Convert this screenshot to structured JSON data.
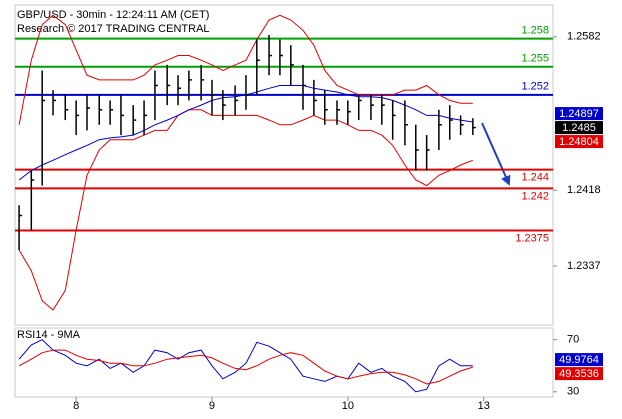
{
  "chart_data": [
    {
      "type": "hlc",
      "title": "GBP/USD - 30min - 12:24:11 AM (CET)",
      "subtitle": "Research © 2017 TRADING CENTRAL",
      "xlim": [
        -0.45,
        3.51
      ],
      "ylim": [
        1.2274,
        1.2616
      ],
      "yticks": [
        1.2337,
        1.2418,
        1.2582
      ],
      "x": [
        -0.42,
        -0.33,
        -0.25,
        -0.17,
        -0.08,
        0,
        0.08,
        0.17,
        0.25,
        0.33,
        0.42,
        0.5,
        0.58,
        0.67,
        0.75,
        0.83,
        0.92,
        1,
        1.08,
        1.17,
        1.25,
        1.33,
        1.42,
        1.5,
        1.58,
        1.67,
        1.75,
        1.83,
        1.92,
        2,
        2.08,
        2.17,
        2.25,
        2.33,
        2.42,
        2.5,
        2.58,
        2.67,
        2.75,
        2.83,
        2.92
      ],
      "bars": {
        "color": "#000000",
        "high": [
          1.2402,
          1.2439,
          1.2546,
          1.2525,
          1.252,
          1.2514,
          1.252,
          1.252,
          1.2514,
          1.252,
          1.2509,
          1.2514,
          1.2546,
          1.2552,
          1.2541,
          1.2546,
          1.2552,
          1.2536,
          1.2525,
          1.253,
          1.2541,
          1.2579,
          1.2584,
          1.2579,
          1.2573,
          1.2552,
          1.2536,
          1.2525,
          1.2514,
          1.2514,
          1.252,
          1.252,
          1.252,
          1.2514,
          1.2514,
          1.2488,
          1.2477,
          1.2504,
          1.2509,
          1.2498,
          1.2495
        ],
        "low": [
          1.2354,
          1.2375,
          1.2423,
          1.2498,
          1.2493,
          1.2477,
          1.2482,
          1.2488,
          1.2488,
          1.2477,
          1.2477,
          1.2477,
          1.2493,
          1.2509,
          1.2509,
          1.2514,
          1.2514,
          1.2498,
          1.2493,
          1.2498,
          1.2504,
          1.252,
          1.2541,
          1.2541,
          1.253,
          1.2504,
          1.2498,
          1.2488,
          1.2488,
          1.2488,
          1.2493,
          1.2493,
          1.2488,
          1.2472,
          1.2466,
          1.2439,
          1.2439,
          1.2461,
          1.2472,
          1.2477,
          1.2477
        ],
        "close": [
          1.2391,
          1.2429,
          1.2514,
          1.2514,
          1.2504,
          1.2498,
          1.2506,
          1.2504,
          1.2504,
          1.2498,
          1.2493,
          1.2498,
          1.253,
          1.253,
          1.2527,
          1.2536,
          1.2536,
          1.252,
          1.2509,
          1.2514,
          1.252,
          1.2557,
          1.2562,
          1.2562,
          1.2552,
          1.253,
          1.2514,
          1.2504,
          1.2504,
          1.2502,
          1.2514,
          1.2509,
          1.2509,
          1.2498,
          1.2488,
          1.2461,
          1.2461,
          1.2488,
          1.2493,
          1.2488,
          1.2485
        ]
      },
      "series": [
        {
          "color": "#e00000",
          "values": [
            1.2488,
            1.2557,
            1.2595,
            1.2605,
            1.2595,
            1.2568,
            1.2541,
            1.2536,
            1.2536,
            1.2536,
            1.2536,
            1.2541,
            1.2552,
            1.2557,
            1.2562,
            1.2562,
            1.2557,
            1.2552,
            1.2546,
            1.2552,
            1.2557,
            1.2579,
            1.26,
            1.2605,
            1.26,
            1.2589,
            1.2573,
            1.2546,
            1.253,
            1.2525,
            1.252,
            1.252,
            1.252,
            1.252,
            1.2525,
            1.2525,
            1.253,
            1.252,
            1.2514,
            1.2511,
            1.2511
          ]
        },
        {
          "color": "#e00000",
          "values": [
            1.2354,
            1.2332,
            1.23,
            1.229,
            1.2311,
            1.2375,
            1.2434,
            1.2461,
            1.2472,
            1.2472,
            1.2472,
            1.2477,
            1.2482,
            1.2482,
            1.2498,
            1.2504,
            1.2504,
            1.2498,
            1.2498,
            1.2498,
            1.2498,
            1.2498,
            1.2493,
            1.2488,
            1.2488,
            1.2493,
            1.2498,
            1.2493,
            1.2493,
            1.2488,
            1.2482,
            1.2482,
            1.2477,
            1.2466,
            1.2445,
            1.2429,
            1.2423,
            1.2434,
            1.2439,
            1.2445,
            1.245
          ]
        },
        {
          "color": "#0000cc",
          "values": [
            1.2429,
            1.2439,
            1.2445,
            1.245,
            1.2456,
            1.2461,
            1.2466,
            1.2472,
            1.2474,
            1.2475,
            1.2477,
            1.2482,
            1.2488,
            1.2493,
            1.2498,
            1.2504,
            1.2509,
            1.2514,
            1.2517,
            1.2518,
            1.252,
            1.2523,
            1.2527,
            1.253,
            1.253,
            1.253,
            1.2527,
            1.2525,
            1.2523,
            1.252,
            1.2518,
            1.2518,
            1.2517,
            1.2514,
            1.2509,
            1.2504,
            1.2498,
            1.2498,
            1.2495,
            1.2493,
            1.2491
          ]
        }
      ],
      "levels": [
        {
          "value": 1.258,
          "color": "#00a000"
        },
        {
          "value": 1.255,
          "color": "#00a000"
        },
        {
          "value": 1.252,
          "color": "#0000cc"
        },
        {
          "value": 1.244,
          "color": "#e00000"
        },
        {
          "value": 1.242,
          "color": "#e00000"
        },
        {
          "value": 1.2375,
          "color": "#e00000"
        }
      ],
      "last_values": [
        {
          "value": 1.24897,
          "color": "#0000cc"
        },
        {
          "value": 1.2485,
          "color": "#000000"
        },
        {
          "value": 1.24804,
          "color": "#e00000"
        }
      ]
    },
    {
      "type": "line",
      "title": "RSI14 - 9MA",
      "xlim": [
        -0.45,
        3.51
      ],
      "ylim": [
        26,
        79
      ],
      "yticks": [
        30,
        70
      ],
      "xticks": [
        {
          "value": 0,
          "label": "8"
        },
        {
          "value": 1,
          "label": "9"
        },
        {
          "value": 2,
          "label": "10"
        },
        {
          "value": 3,
          "label": "13"
        }
      ],
      "x": [
        -0.42,
        -0.33,
        -0.25,
        -0.17,
        -0.08,
        0,
        0.08,
        0.17,
        0.25,
        0.33,
        0.42,
        0.5,
        0.58,
        0.67,
        0.75,
        0.83,
        0.92,
        1,
        1.08,
        1.17,
        1.25,
        1.33,
        1.42,
        1.5,
        1.58,
        1.67,
        1.75,
        1.83,
        1.92,
        2,
        2.08,
        2.17,
        2.25,
        2.33,
        2.42,
        2.5,
        2.58,
        2.67,
        2.75,
        2.83,
        2.92
      ],
      "series": [
        {
          "color": "#0000cc",
          "values": [
            55,
            66,
            70,
            62,
            58,
            52,
            50,
            55,
            48,
            52,
            45,
            50,
            62,
            60,
            55,
            60,
            62,
            50,
            40,
            45,
            52,
            68,
            65,
            60,
            55,
            42,
            40,
            38,
            42,
            40,
            52,
            45,
            48,
            42,
            38,
            30,
            32,
            50,
            55,
            50,
            50
          ]
        },
        {
          "color": "#e00000",
          "values": [
            50,
            55,
            60,
            62,
            62,
            58,
            55,
            54,
            52,
            52,
            50,
            50,
            52,
            55,
            56,
            57,
            58,
            56,
            52,
            48,
            47,
            50,
            55,
            58,
            60,
            58,
            52,
            46,
            42,
            40,
            42,
            44,
            45,
            45,
            43,
            40,
            36,
            38,
            42,
            46,
            49
          ]
        }
      ],
      "last_values": [
        {
          "value": 49.9764,
          "color": "#0000cc"
        },
        {
          "value": 49.3536,
          "color": "#e00000"
        }
      ]
    }
  ]
}
